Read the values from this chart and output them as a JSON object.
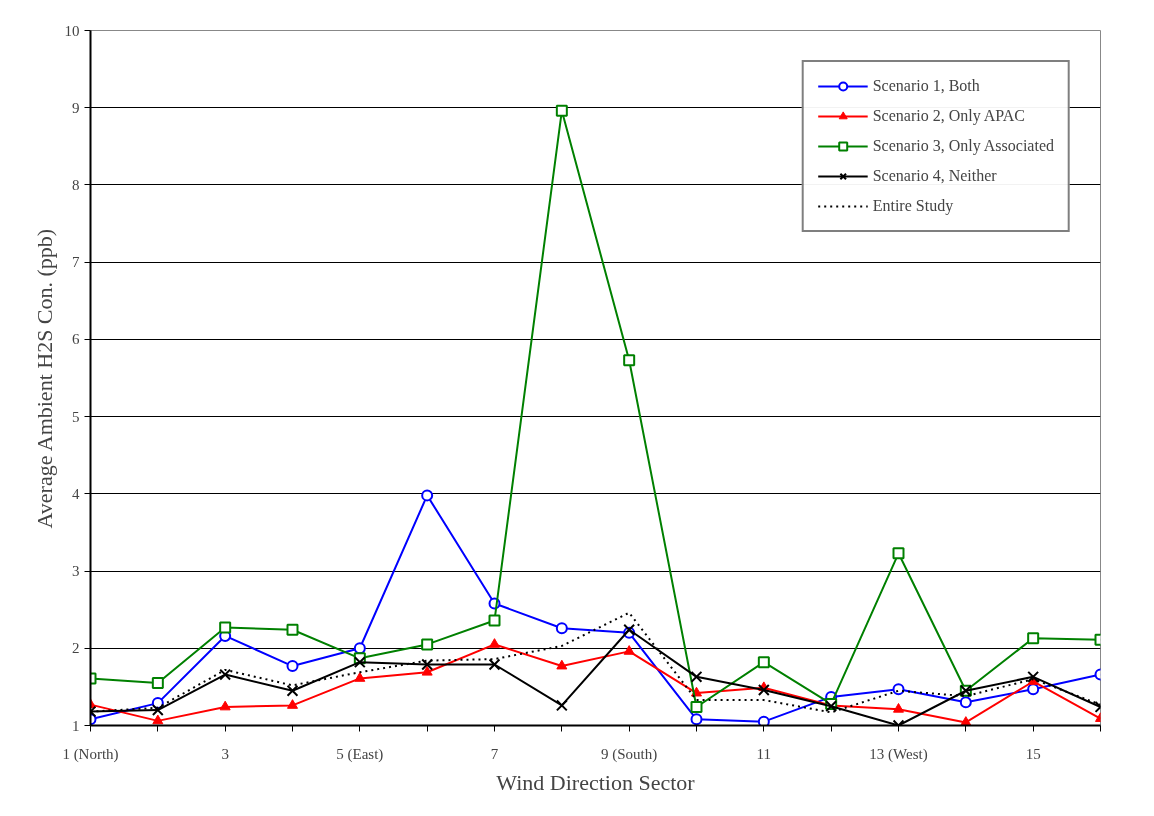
{
  "chart_data": {
    "type": "line",
    "xlabel": "Wind Direction Sector",
    "ylabel": "Average Ambient H2S Con. (ppb)",
    "x": [
      1,
      2,
      3,
      4,
      5,
      6,
      7,
      8,
      9,
      10,
      11,
      12,
      13,
      14,
      15,
      16
    ],
    "xlim": [
      1,
      16
    ],
    "xticks": [
      {
        "value": 1,
        "label": "1 (North)"
      },
      {
        "value": 2,
        "label": null
      },
      3,
      {
        "value": 4,
        "label": null
      },
      {
        "value": 5,
        "label": "5 (East)"
      },
      {
        "value": 6,
        "label": null
      },
      7,
      {
        "value": 8,
        "label": null
      },
      {
        "value": 9,
        "label": "9 (South)"
      },
      {
        "value": 10,
        "label": null
      },
      11,
      {
        "value": 12,
        "label": null
      },
      {
        "value": 13,
        "label": "13 (West)"
      },
      {
        "value": 14,
        "label": null
      },
      15,
      {
        "value": 16,
        "label": null
      }
    ],
    "ylim": [
      1,
      10
    ],
    "yticks": [
      1,
      2,
      3,
      4,
      5,
      6,
      7,
      8,
      9,
      10
    ],
    "grid": "y",
    "legend": "top right",
    "series": [
      {
        "name": "Scenario 1, Both",
        "color": "#0000ff",
        "marker": "circle",
        "line_style": "solid",
        "values": [
          1.08,
          1.29,
          2.16,
          1.77,
          2.0,
          3.98,
          2.58,
          2.26,
          2.2,
          1.08,
          1.05,
          1.37,
          1.47,
          1.3,
          1.47,
          1.66
        ]
      },
      {
        "name": "Scenario 2, Only APAC",
        "color": "#ff0000",
        "marker": "triangle",
        "line_style": "solid",
        "values": [
          1.27,
          1.06,
          1.24,
          1.26,
          1.61,
          1.69,
          2.05,
          1.77,
          1.96,
          1.42,
          1.49,
          1.26,
          1.21,
          1.04,
          1.57,
          1.09
        ]
      },
      {
        "name": "Scenario 3, Only Associated",
        "color": "#008000",
        "marker": "square",
        "line_style": "solid",
        "values": [
          1.61,
          1.55,
          2.27,
          2.24,
          1.87,
          2.05,
          2.36,
          8.96,
          5.73,
          1.24,
          1.82,
          1.28,
          3.23,
          1.45,
          2.13,
          2.11
        ]
      },
      {
        "name": "Scenario 4, Neither",
        "color": "#000000",
        "marker": "cross",
        "line_style": "solid",
        "values": [
          1.18,
          1.2,
          1.66,
          1.45,
          1.82,
          1.79,
          1.79,
          1.26,
          2.24,
          1.63,
          1.46,
          1.25,
          1.0,
          1.45,
          1.63,
          1.24
        ]
      },
      {
        "name": "Entire Study",
        "color": "#000000",
        "marker": "none",
        "line_style": "dotted",
        "values": [
          1.18,
          1.23,
          1.72,
          1.52,
          1.69,
          1.84,
          1.86,
          2.03,
          2.46,
          1.33,
          1.33,
          1.17,
          1.45,
          1.38,
          1.6,
          1.27
        ]
      }
    ]
  }
}
